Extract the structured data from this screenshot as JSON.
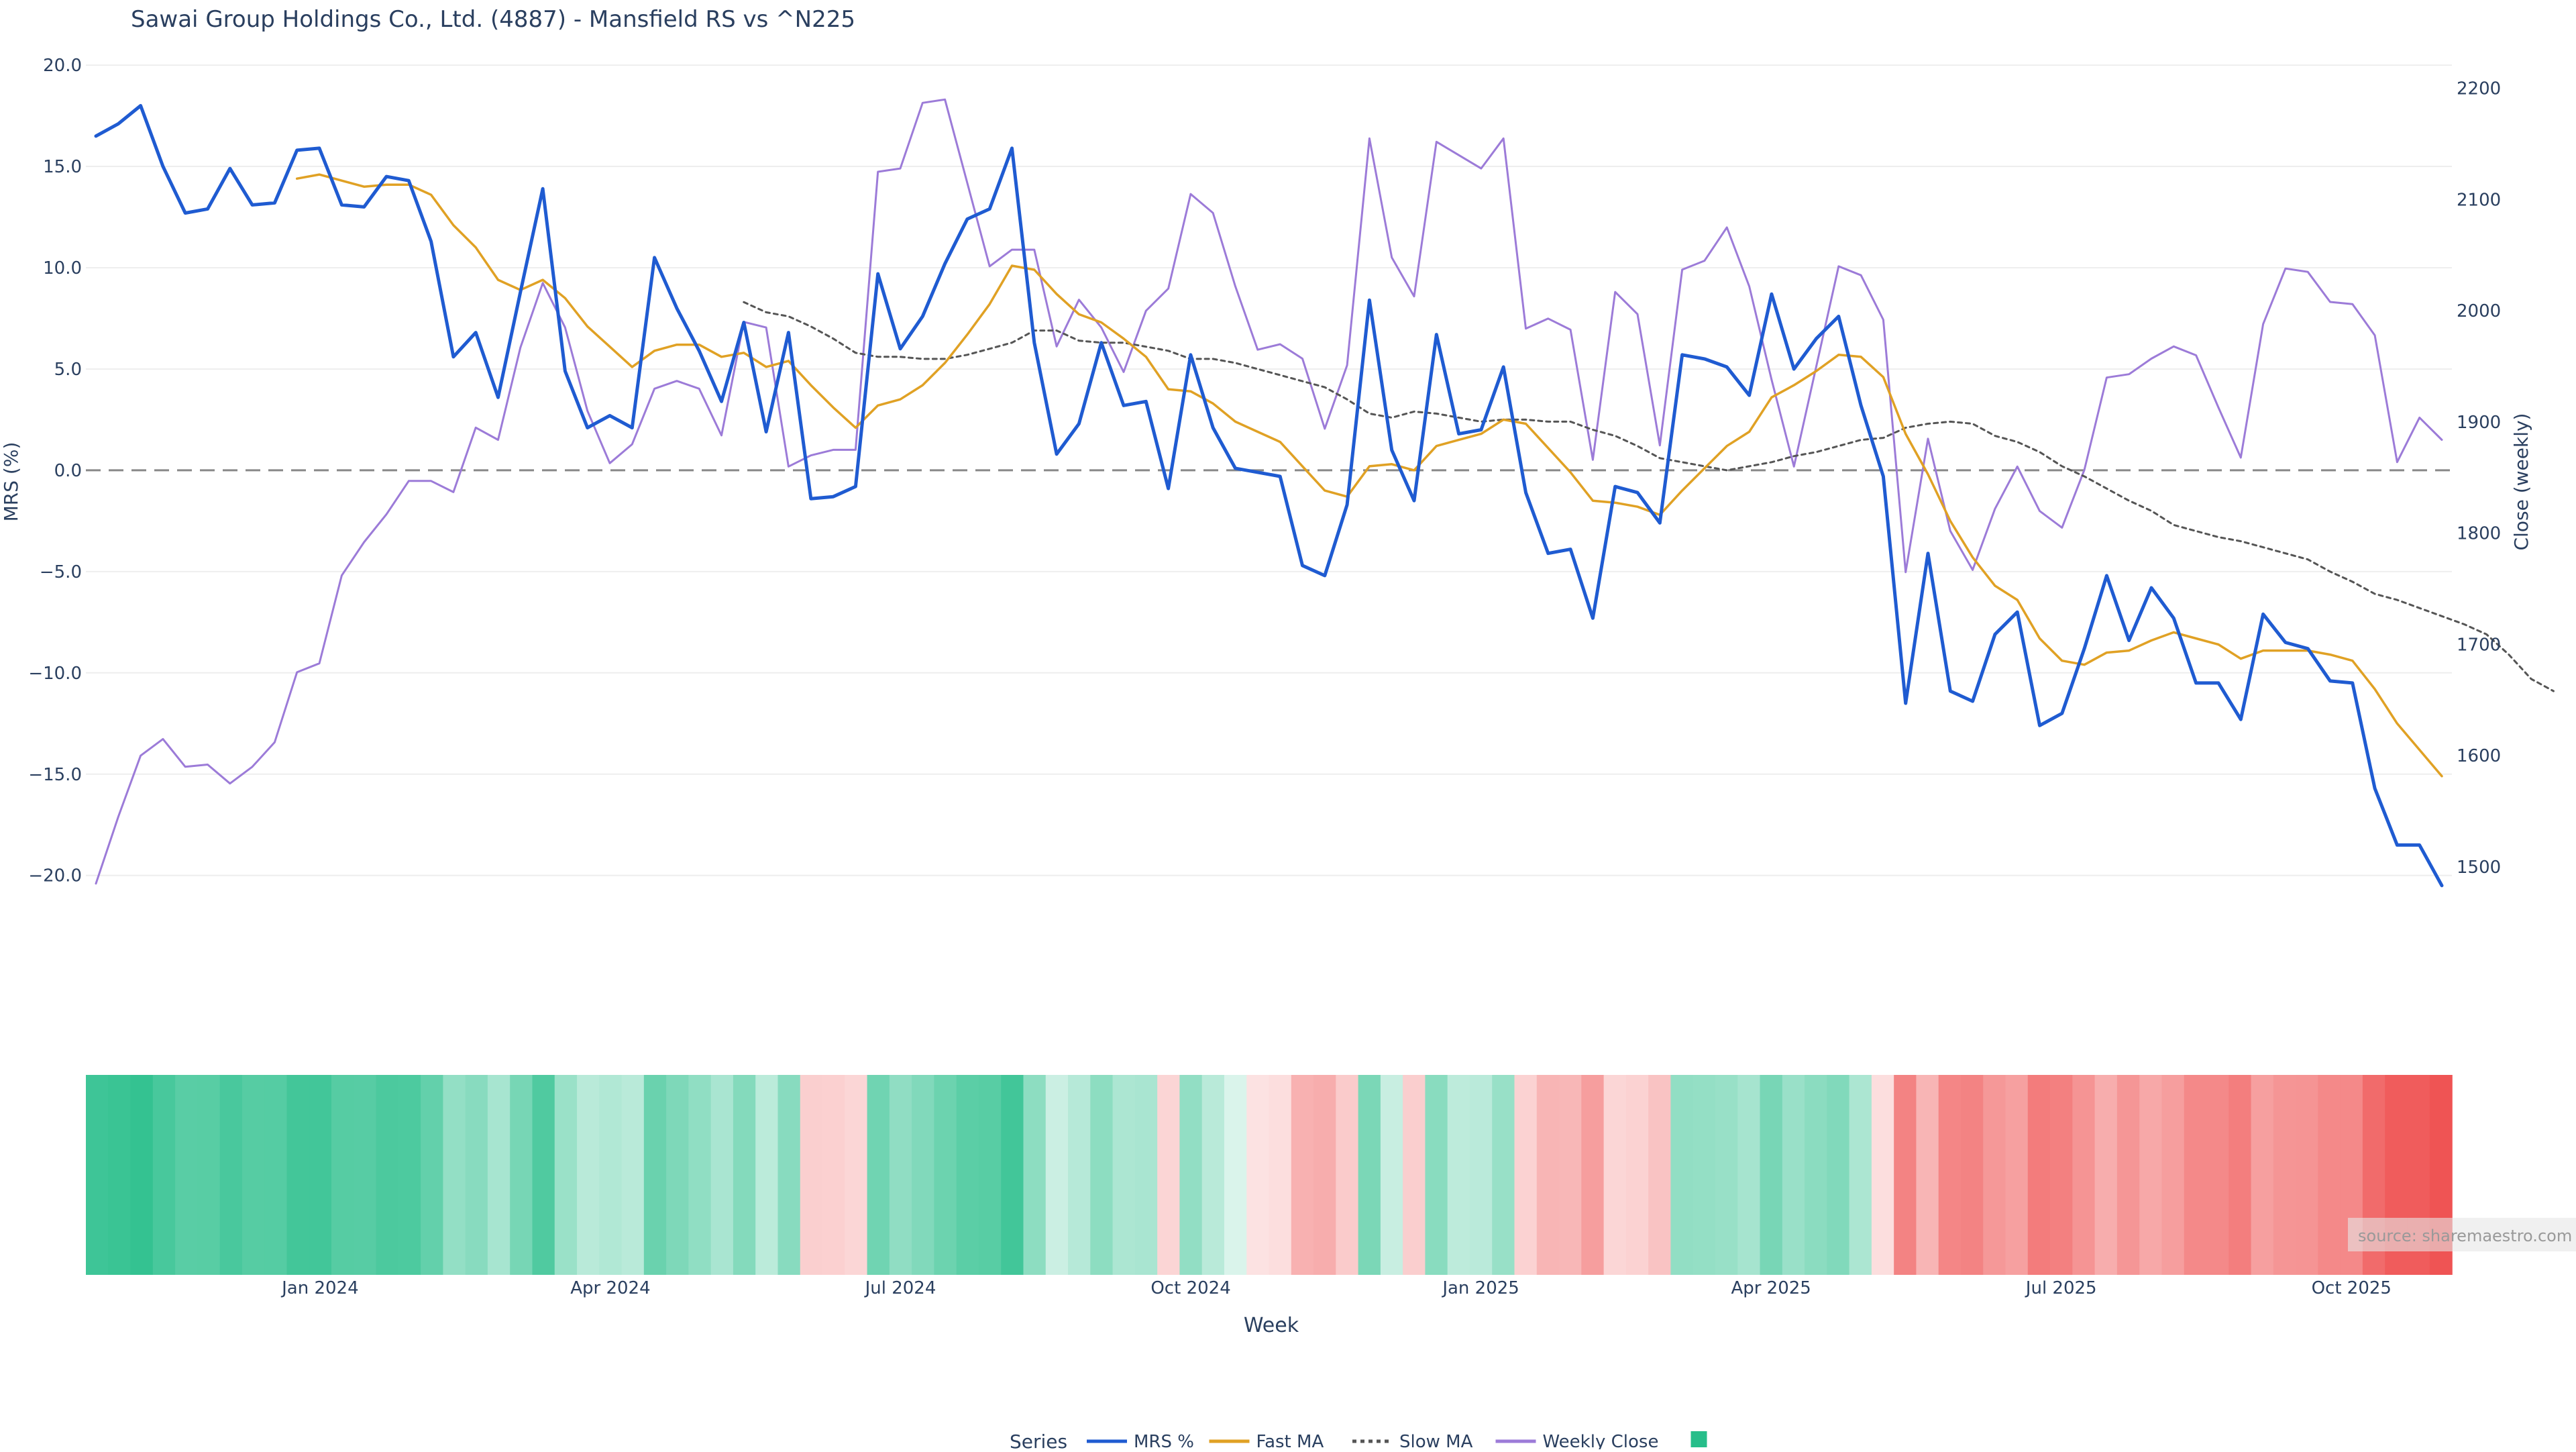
{
  "chart_data": {
    "type": "line",
    "title": "Sawai Group Holdings Co., Ltd. (4887) - Mansfield RS vs ^N225",
    "xlabel": "Week",
    "ylabel_left": "MRS (%)",
    "ylabel_right": "Close (weekly)",
    "ylim_left": [
      -21.5,
      20.5
    ],
    "ylim_right": [
      1465,
      2230
    ],
    "yticks_left": [
      "20.0",
      "15.0",
      "10.0",
      "5.0",
      "0.0",
      "−5.0",
      "−10.0",
      "−15.0",
      "−20.0"
    ],
    "yticks_left_values": [
      20,
      15,
      10,
      5,
      0,
      -5,
      -10,
      -15,
      -20
    ],
    "yticks_right": [
      "2200",
      "2100",
      "2000",
      "1900",
      "1800",
      "1700",
      "1600",
      "1500"
    ],
    "yticks_right_values": [
      2200,
      2100,
      2000,
      1900,
      1800,
      1700,
      1600,
      1500
    ],
    "xticks": [
      "Jan 2024",
      "Apr 2024",
      "Jul 2024",
      "Oct 2024",
      "Jan 2025",
      "Apr 2025",
      "Jul 2025",
      "Oct 2025"
    ],
    "xticks_week_index": [
      10,
      23,
      36,
      49,
      62,
      75,
      88,
      101
    ],
    "zero_line": true,
    "grid": true,
    "legend_title": "Series",
    "legend_position": "bottom-center",
    "source": "source: sharemaestro.com",
    "colors": {
      "mrs": "#1f5bd1",
      "fast_ma": "#e0a124",
      "slow_ma": "#555555",
      "weekly_close": "#9c7bd8",
      "heat_positive": "#27be8a",
      "heat_negative": "#ef5454",
      "zero_line": "#888888",
      "grid": "#eeeeee"
    },
    "week_start": 0,
    "series": [
      {
        "name": "MRS %",
        "axis": "left",
        "color": "#1f5bd1",
        "style": "solid",
        "start": 0,
        "values": [
          16.5,
          17.1,
          18.0,
          15.0,
          12.7,
          12.9,
          14.9,
          13.1,
          13.2,
          15.8,
          15.9,
          13.1,
          13.0,
          14.5,
          14.3,
          11.3,
          5.6,
          6.8,
          3.6,
          8.8,
          13.9,
          4.9,
          2.1,
          2.7,
          2.1,
          10.5,
          8.0,
          5.9,
          3.4,
          7.3,
          1.9,
          6.8,
          -1.4,
          -1.3,
          -0.8,
          9.7,
          6.0,
          7.6,
          10.2,
          12.4,
          12.9,
          15.9,
          6.3,
          0.8,
          2.3,
          6.3,
          3.2,
          3.4,
          -0.9,
          5.7,
          2.1,
          0.1,
          -0.1,
          -0.3,
          -4.7,
          -5.2,
          -1.7,
          8.4,
          1.0,
          -1.5,
          6.7,
          1.8,
          2.0,
          5.1,
          -1.1,
          -4.1,
          -3.9,
          -7.3,
          -0.8,
          -1.1,
          -2.6,
          5.7,
          5.5,
          5.1,
          3.7,
          8.7,
          5.0,
          6.5,
          7.6,
          3.2,
          -0.3,
          -11.5,
          -4.1,
          -10.9,
          -11.4,
          -8.1,
          -7.0,
          -12.6,
          -12.0,
          -8.8,
          -5.2,
          -8.4,
          -5.8,
          -7.3,
          -10.5,
          -10.5,
          -12.3,
          -7.1,
          -8.5,
          -8.8,
          -10.4,
          -10.5,
          -15.7,
          -18.5,
          -18.5,
          -20.5
        ]
      },
      {
        "name": "Fast MA",
        "axis": "left",
        "color": "#e0a124",
        "style": "solid",
        "start": 9,
        "values": [
          14.4,
          14.6,
          14.3,
          14.0,
          14.1,
          14.1,
          13.6,
          12.1,
          11.0,
          9.4,
          8.9,
          9.4,
          8.5,
          7.1,
          6.1,
          5.1,
          5.9,
          6.2,
          6.2,
          5.6,
          5.8,
          5.1,
          5.4,
          4.2,
          3.1,
          2.1,
          3.2,
          3.5,
          4.2,
          5.3,
          6.7,
          8.2,
          10.1,
          9.9,
          8.7,
          7.7,
          7.3,
          6.5,
          5.6,
          4.0,
          3.9,
          3.3,
          2.4,
          1.9,
          1.4,
          0.2,
          -1.0,
          -1.3,
          0.2,
          0.3,
          0.0,
          1.2,
          1.5,
          1.8,
          2.5,
          2.3,
          1.1,
          -0.1,
          -1.5,
          -1.6,
          -1.8,
          -2.2,
          -1.0,
          0.1,
          1.2,
          1.9,
          3.6,
          4.2,
          4.9,
          5.7,
          5.6,
          4.6,
          1.8,
          -0.2,
          -2.5,
          -4.3,
          -5.7,
          -6.4,
          -8.3,
          -9.4,
          -9.6,
          -9.0,
          -8.9,
          -8.4,
          -8.0,
          -8.3,
          -8.6,
          -9.3,
          -8.9,
          -8.9,
          -8.9,
          -9.1,
          -9.4,
          -10.8,
          -12.5,
          -13.8,
          -15.1
        ]
      },
      {
        "name": "Slow MA",
        "axis": "left",
        "color": "#555555",
        "style": "dotted",
        "start": 29,
        "values": [
          8.3,
          7.8,
          7.6,
          7.1,
          6.5,
          5.8,
          5.6,
          5.6,
          5.5,
          5.5,
          5.7,
          6.0,
          6.3,
          6.9,
          6.9,
          6.4,
          6.3,
          6.3,
          6.1,
          5.9,
          5.5,
          5.5,
          5.3,
          5.0,
          4.7,
          4.4,
          4.1,
          3.5,
          2.8,
          2.6,
          2.9,
          2.8,
          2.6,
          2.4,
          2.5,
          2.5,
          2.4,
          2.4,
          2.0,
          1.7,
          1.2,
          0.6,
          0.4,
          0.2,
          0.0,
          0.2,
          0.4,
          0.7,
          0.9,
          1.2,
          1.5,
          1.6,
          2.1,
          2.3,
          2.4,
          2.3,
          1.7,
          1.4,
          0.9,
          0.2,
          -0.3,
          -0.9,
          -1.5,
          -2.0,
          -2.7,
          -3.0,
          -3.3,
          -3.5,
          -3.8,
          -4.1,
          -4.4,
          -5.0,
          -5.5,
          -6.1,
          -6.4,
          -6.8,
          -7.2,
          -7.6,
          -8.1,
          -9.1,
          -10.3,
          -10.9
        ]
      },
      {
        "name": "Weekly Close",
        "axis": "right",
        "color": "#9c7bd8",
        "style": "solid",
        "start": 0,
        "values": [
          1485,
          1545,
          1600,
          1615,
          1590,
          1592,
          1575,
          1590,
          1612,
          1675,
          1683,
          1762,
          1792,
          1817,
          1847,
          1847,
          1837,
          1895,
          1884,
          1967,
          2025,
          1985,
          1910,
          1863,
          1880,
          1930,
          1937,
          1930,
          1888,
          1990,
          1985,
          1860,
          1870,
          1875,
          1875,
          2125,
          2128,
          2187,
          2190,
          2115,
          2040,
          2055,
          2055,
          1968,
          2010,
          1985,
          1945,
          2000,
          2020,
          2105,
          2088,
          2022,
          1965,
          1970,
          1957,
          1894,
          1951,
          2155,
          2048,
          2013,
          2152,
          2140,
          2128,
          2155,
          1984,
          1993,
          1983,
          1866,
          2017,
          1997,
          1879,
          2037,
          2045,
          2075,
          2022,
          1938,
          1860,
          1950,
          2040,
          2032,
          1992,
          1765,
          1885,
          1802,
          1767,
          1822,
          1860,
          1820,
          1805,
          1857,
          1940,
          1943,
          1957,
          1968,
          1960,
          1913,
          1868,
          1988,
          2038,
          2035,
          2008,
          2006,
          1978,
          1864,
          1904,
          1884
        ]
      }
    ],
    "heatmap": {
      "name": "MRS %",
      "values_from_series": "MRS %",
      "positive_color": "#27be8a",
      "negative_color": "#ef5454"
    }
  },
  "legend": {
    "title": "Series",
    "items": [
      {
        "label": "MRS %",
        "color": "#1f5bd1",
        "style": "solid"
      },
      {
        "label": "Fast MA",
        "color": "#e0a124",
        "style": "solid"
      },
      {
        "label": "Slow MA",
        "color": "#555555",
        "style": "dotted"
      },
      {
        "label": "Weekly Close",
        "color": "#9c7bd8",
        "style": "solid"
      },
      {
        "label": "",
        "color": "#27be8a",
        "style": "square"
      }
    ]
  }
}
